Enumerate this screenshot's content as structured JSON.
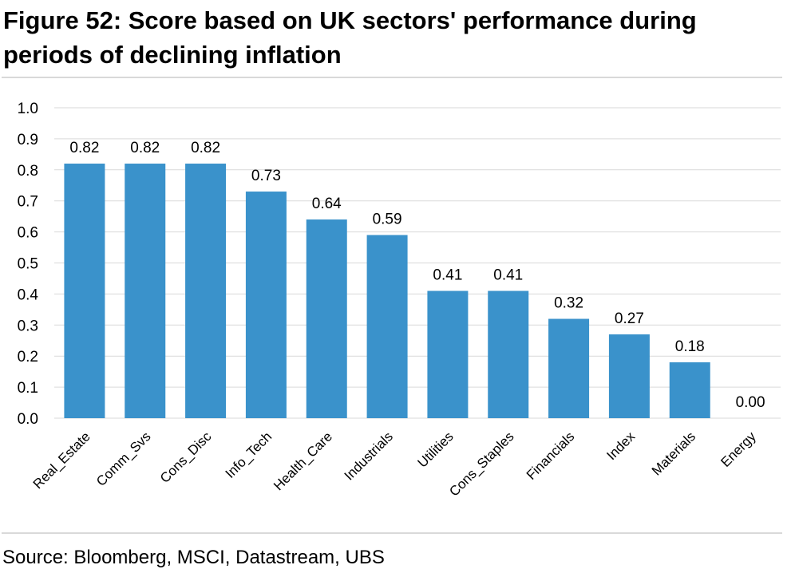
{
  "figure": {
    "title": "Figure 52: Score based on UK sectors' performance during periods of declining inflation",
    "source": "Source: Bloomberg, MSCI, Datastream, UBS"
  },
  "colors": {
    "bar": "#3a92cb",
    "grid": "#d9d9d9",
    "rule": "#d9d9d9"
  },
  "chart_data": {
    "type": "bar",
    "categories": [
      "Real_Estate",
      "Comm_Svs",
      "Cons_Disc",
      "Info_Tech",
      "Health_Care",
      "Industrials",
      "Utilities",
      "Cons_Staples",
      "Financials",
      "Index",
      "Materials",
      "Energy"
    ],
    "values": [
      0.82,
      0.82,
      0.82,
      0.73,
      0.64,
      0.59,
      0.41,
      0.41,
      0.32,
      0.27,
      0.18,
      0.0
    ],
    "data_labels": [
      "0.82",
      "0.82",
      "0.82",
      "0.73",
      "0.64",
      "0.59",
      "0.41",
      "0.41",
      "0.32",
      "0.27",
      "0.18",
      "0.00"
    ],
    "yticks": [
      "0.0",
      "0.1",
      "0.2",
      "0.3",
      "0.4",
      "0.5",
      "0.6",
      "0.7",
      "0.8",
      "0.9",
      "1.0"
    ],
    "ylim": [
      0,
      1.0
    ],
    "grid": true,
    "legend": false,
    "xlabel": "",
    "ylabel": ""
  }
}
